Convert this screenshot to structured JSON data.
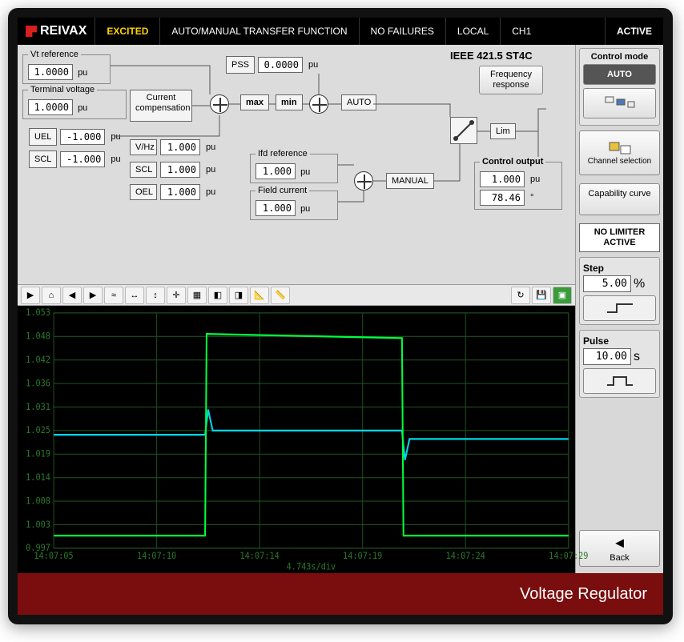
{
  "brand": "REIVAX",
  "topbar": {
    "status": "EXCITED",
    "transfer": "AUTO/MANUAL TRANSFER FUNCTION",
    "failures": "NO FAILURES",
    "scope": "LOCAL",
    "channel": "CH1",
    "active": "ACTIVE"
  },
  "diagram": {
    "model": "IEEE 421.5 ST4C",
    "vt_ref_label": "Vt reference",
    "vt_ref": "1.0000",
    "vt_ref_unit": "pu",
    "term_v_label": "Terminal voltage",
    "term_v": "1.0000",
    "term_v_unit": "pu",
    "curcomp": "Current compensation",
    "uel_label": "UEL",
    "uel": "-1.000",
    "uel_unit": "pu",
    "scl_label": "SCL",
    "scl": "-1.000",
    "scl_unit": "pu",
    "pss_label": "PSS",
    "pss": "0.0000",
    "pss_unit": "pu",
    "maxlbl": "max",
    "minlbl": "min",
    "autolbl": "AUTO",
    "vhz_label": "V/Hz",
    "vhz": "1.000",
    "vhz_unit": "pu",
    "scl2_label": "SCL",
    "scl2": "1.000",
    "scl2_unit": "pu",
    "oel_label": "OEL",
    "oel": "1.000",
    "oel_unit": "pu",
    "ifd_ref_label": "Ifd reference",
    "ifd_ref": "1.000",
    "ifd_ref_unit": "pu",
    "field_i_label": "Field current",
    "field_i": "1.000",
    "field_i_unit": "pu",
    "manual": "MANUAL",
    "limlbl": "Lim",
    "freq_btn": "Frequency response",
    "ctrl_out_label": "Control output",
    "ctrl_out_pu": "1.000",
    "ctrl_out_pu_unit": "pu",
    "ctrl_out_deg": "78.46",
    "ctrl_out_deg_unit": "°"
  },
  "sidebar": {
    "mode_title": "Control mode",
    "auto": "AUTO",
    "chan_sel": "Channel selection",
    "cap_curve": "Capability curve",
    "limiter": "NO LIMITER ACTIVE",
    "step_label": "Step",
    "step": "5.00",
    "step_unit": "%",
    "pulse_label": "Pulse",
    "pulse": "10.00",
    "pulse_unit": "s",
    "back": "Back"
  },
  "chart": {
    "bg": "#000000",
    "grid_color": "#1e4d1e",
    "axis_text_color": "#2a7a2a",
    "line1_color": "#00ff3c",
    "line2_color": "#00d8e8",
    "ylim": [
      0.997,
      1.053
    ],
    "yticks": [
      "1.053",
      "1.048",
      "1.042",
      "1.036",
      "1.031",
      "1.025",
      "1.019",
      "1.014",
      "1.008",
      "1.003",
      "0.997"
    ],
    "xticks": [
      "14:07:05",
      "14:07:10",
      "14:07:14",
      "14:07:19",
      "14:07:24",
      "14:07:29"
    ],
    "xdiv": "4.743s/div",
    "line1_points": [
      [
        0,
        1.0
      ],
      [
        200,
        1.0
      ],
      [
        202,
        1.048
      ],
      [
        460,
        1.047
      ],
      [
        462,
        1.0
      ],
      [
        680,
        1.0
      ]
    ],
    "line2_points": [
      [
        0,
        1.024
      ],
      [
        200,
        1.024
      ],
      [
        204,
        1.03
      ],
      [
        210,
        1.025
      ],
      [
        460,
        1.025
      ],
      [
        464,
        1.018
      ],
      [
        470,
        1.023
      ],
      [
        680,
        1.023
      ]
    ]
  },
  "footer": "Voltage Regulator",
  "colors": {
    "brand_red": "#d81e1e",
    "footer_bg": "#7a0d0d",
    "yellow": "#ffd400"
  }
}
